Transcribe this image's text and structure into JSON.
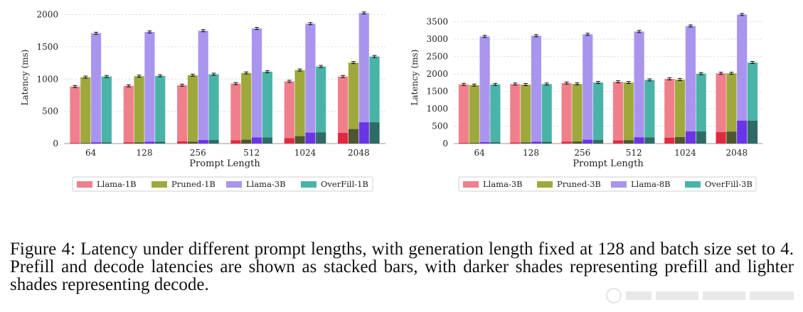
{
  "figure": {
    "colors": {
      "Llama-1B": {
        "decode": "#f07f8c",
        "prefill": "#e0293f"
      },
      "Pruned-1B": {
        "decode": "#9fa83b",
        "prefill": "#4e5630"
      },
      "Llama-3B": {
        "decode": "#a995ee",
        "prefill": "#6a35e6"
      },
      "OverFill-1B": {
        "decode": "#4ab3a8",
        "prefill": "#2f6b66"
      },
      "Llama-3B_right": {
        "decode": "#f07f8c",
        "prefill": "#e0293f"
      },
      "Pruned-3B": {
        "decode": "#9fa83b",
        "prefill": "#4e5630"
      },
      "Llama-8B": {
        "decode": "#a995ee",
        "prefill": "#6a35e6"
      },
      "OverFill-3B": {
        "decode": "#4ab3a8",
        "prefill": "#2f6b66"
      }
    }
  },
  "chart_data": [
    {
      "type": "bar",
      "stacked": true,
      "categories": [
        "64",
        "128",
        "256",
        "512",
        "1024",
        "2048"
      ],
      "xlabel": "Prompt Length",
      "ylabel": "Latency (ms)",
      "ylim": [
        0,
        2050
      ],
      "yticks": [
        0,
        500,
        1000,
        1500,
        2000
      ],
      "grid": true,
      "legend_position": "bottom",
      "series": [
        {
          "name": "Llama-1B",
          "total": [
            885,
            895,
            905,
            930,
            965,
            1040
          ],
          "prefill": [
            10,
            20,
            35,
            50,
            85,
            165
          ]
        },
        {
          "name": "Pruned-1B",
          "total": [
            1030,
            1045,
            1060,
            1095,
            1140,
            1255
          ],
          "prefill": [
            10,
            20,
            30,
            60,
            115,
            225
          ]
        },
        {
          "name": "Llama-3B",
          "total": [
            1710,
            1730,
            1750,
            1785,
            1860,
            2025
          ],
          "prefill": [
            20,
            30,
            55,
            95,
            170,
            330
          ]
        },
        {
          "name": "OverFill-1B",
          "total": [
            1040,
            1050,
            1075,
            1115,
            1195,
            1350
          ],
          "prefill": [
            20,
            30,
            55,
            95,
            175,
            330
          ]
        }
      ]
    },
    {
      "type": "bar",
      "stacked": true,
      "categories": [
        "64",
        "128",
        "256",
        "512",
        "1024",
        "2048"
      ],
      "xlabel": "Prompt Length",
      "ylabel": "Latency (ms)",
      "ylim": [
        0,
        3800
      ],
      "yticks": [
        0,
        500,
        1000,
        1500,
        2000,
        2500,
        3000,
        3500
      ],
      "grid": true,
      "legend_position": "bottom",
      "series": [
        {
          "name": "Llama-3B",
          "total": [
            1700,
            1710,
            1740,
            1775,
            1860,
            2020
          ],
          "prefill": [
            20,
            30,
            55,
            90,
            170,
            330
          ]
        },
        {
          "name": "Pruned-3B",
          "total": [
            1680,
            1695,
            1715,
            1755,
            1840,
            2020
          ],
          "prefill": [
            20,
            35,
            60,
            100,
            185,
            345
          ]
        },
        {
          "name": "Llama-8B",
          "total": [
            3080,
            3100,
            3140,
            3220,
            3380,
            3710
          ],
          "prefill": [
            40,
            55,
            110,
            180,
            350,
            660
          ]
        },
        {
          "name": "OverFill-3B",
          "total": [
            1700,
            1710,
            1755,
            1830,
            2010,
            2330
          ],
          "prefill": [
            40,
            55,
            105,
            180,
            350,
            660
          ]
        }
      ]
    }
  ],
  "caption": {
    "text": "Figure 4: Latency under different prompt lengths, with generation length fixed at 128 and batch size set to 4. Prefill and decode latencies are shown as stacked bars, with darker shades representing prefill and lighter shades representing decode."
  }
}
